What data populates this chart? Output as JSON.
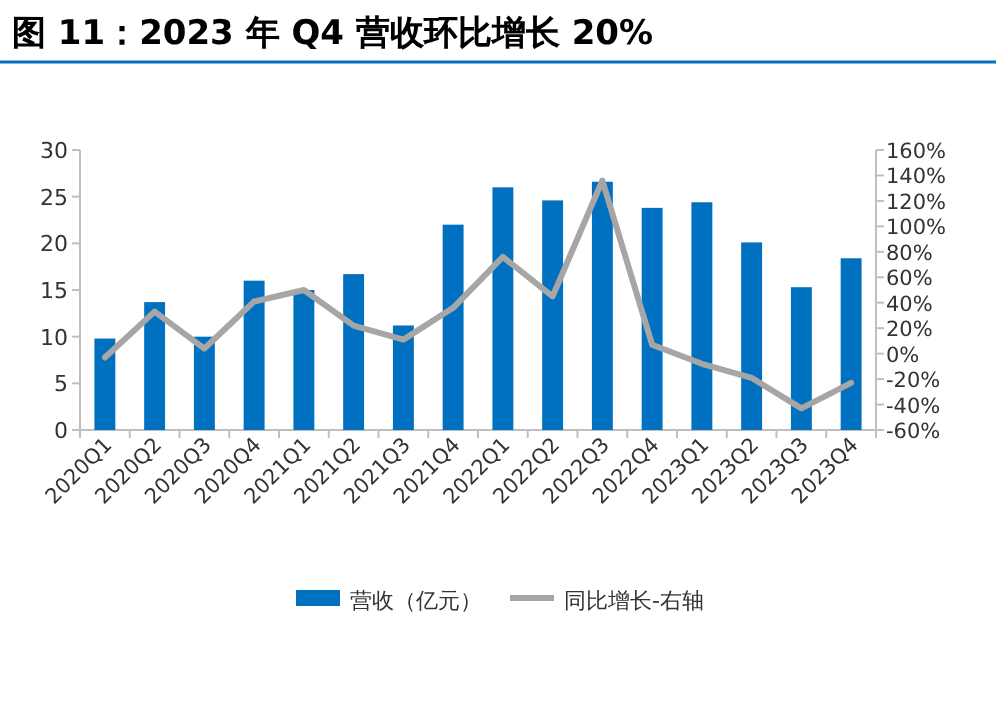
{
  "chart_data": {
    "type": "bar",
    "title": "图 11：2023 年 Q4 营收环比增长 20%",
    "categories": [
      "2020Q1",
      "2020Q2",
      "2020Q3",
      "2020Q4",
      "2021Q1",
      "2021Q2",
      "2021Q3",
      "2021Q4",
      "2022Q1",
      "2022Q2",
      "2022Q3",
      "2022Q4",
      "2023Q1",
      "2023Q2",
      "2023Q3",
      "2023Q4"
    ],
    "series": [
      {
        "name": "营收（亿元）",
        "color": "#0070c0",
        "values": [
          9.8,
          13.7,
          10,
          16,
          15,
          16.7,
          11.2,
          22,
          26,
          24.6,
          26.6,
          23.8,
          24.4,
          20.1,
          15.3,
          18.4
        ]
      },
      {
        "name": "同比增长-右轴",
        "type": "line",
        "axis": "y2",
        "color": "#a6a6a6",
        "values": [
          -3,
          33,
          4,
          41,
          50,
          22,
          11,
          36,
          76,
          45,
          136,
          7,
          -8,
          -19,
          -43,
          -23
        ]
      }
    ],
    "ylim": [
      0,
      30
    ],
    "yticks": [
      0,
      5,
      10,
      15,
      20,
      25,
      30
    ],
    "y2lim": [
      -60,
      160
    ],
    "y2ticks": [
      {
        "value": -60,
        "label": "-60%"
      },
      {
        "value": -40,
        "label": "-40%"
      },
      {
        "value": -20,
        "label": "-20%"
      },
      {
        "value": 0,
        "label": "0%"
      },
      {
        "value": 20,
        "label": "20%"
      },
      {
        "value": 40,
        "label": "40%"
      },
      {
        "value": 60,
        "label": "60%"
      },
      {
        "value": 80,
        "label": "80%"
      },
      {
        "value": 100,
        "label": "100%"
      },
      {
        "value": 120,
        "label": "120%"
      },
      {
        "value": 140,
        "label": "140%"
      },
      {
        "value": 160,
        "label": "160%"
      }
    ],
    "legend": "bottom",
    "grid": false,
    "marker": "none",
    "line_style": "solid"
  }
}
